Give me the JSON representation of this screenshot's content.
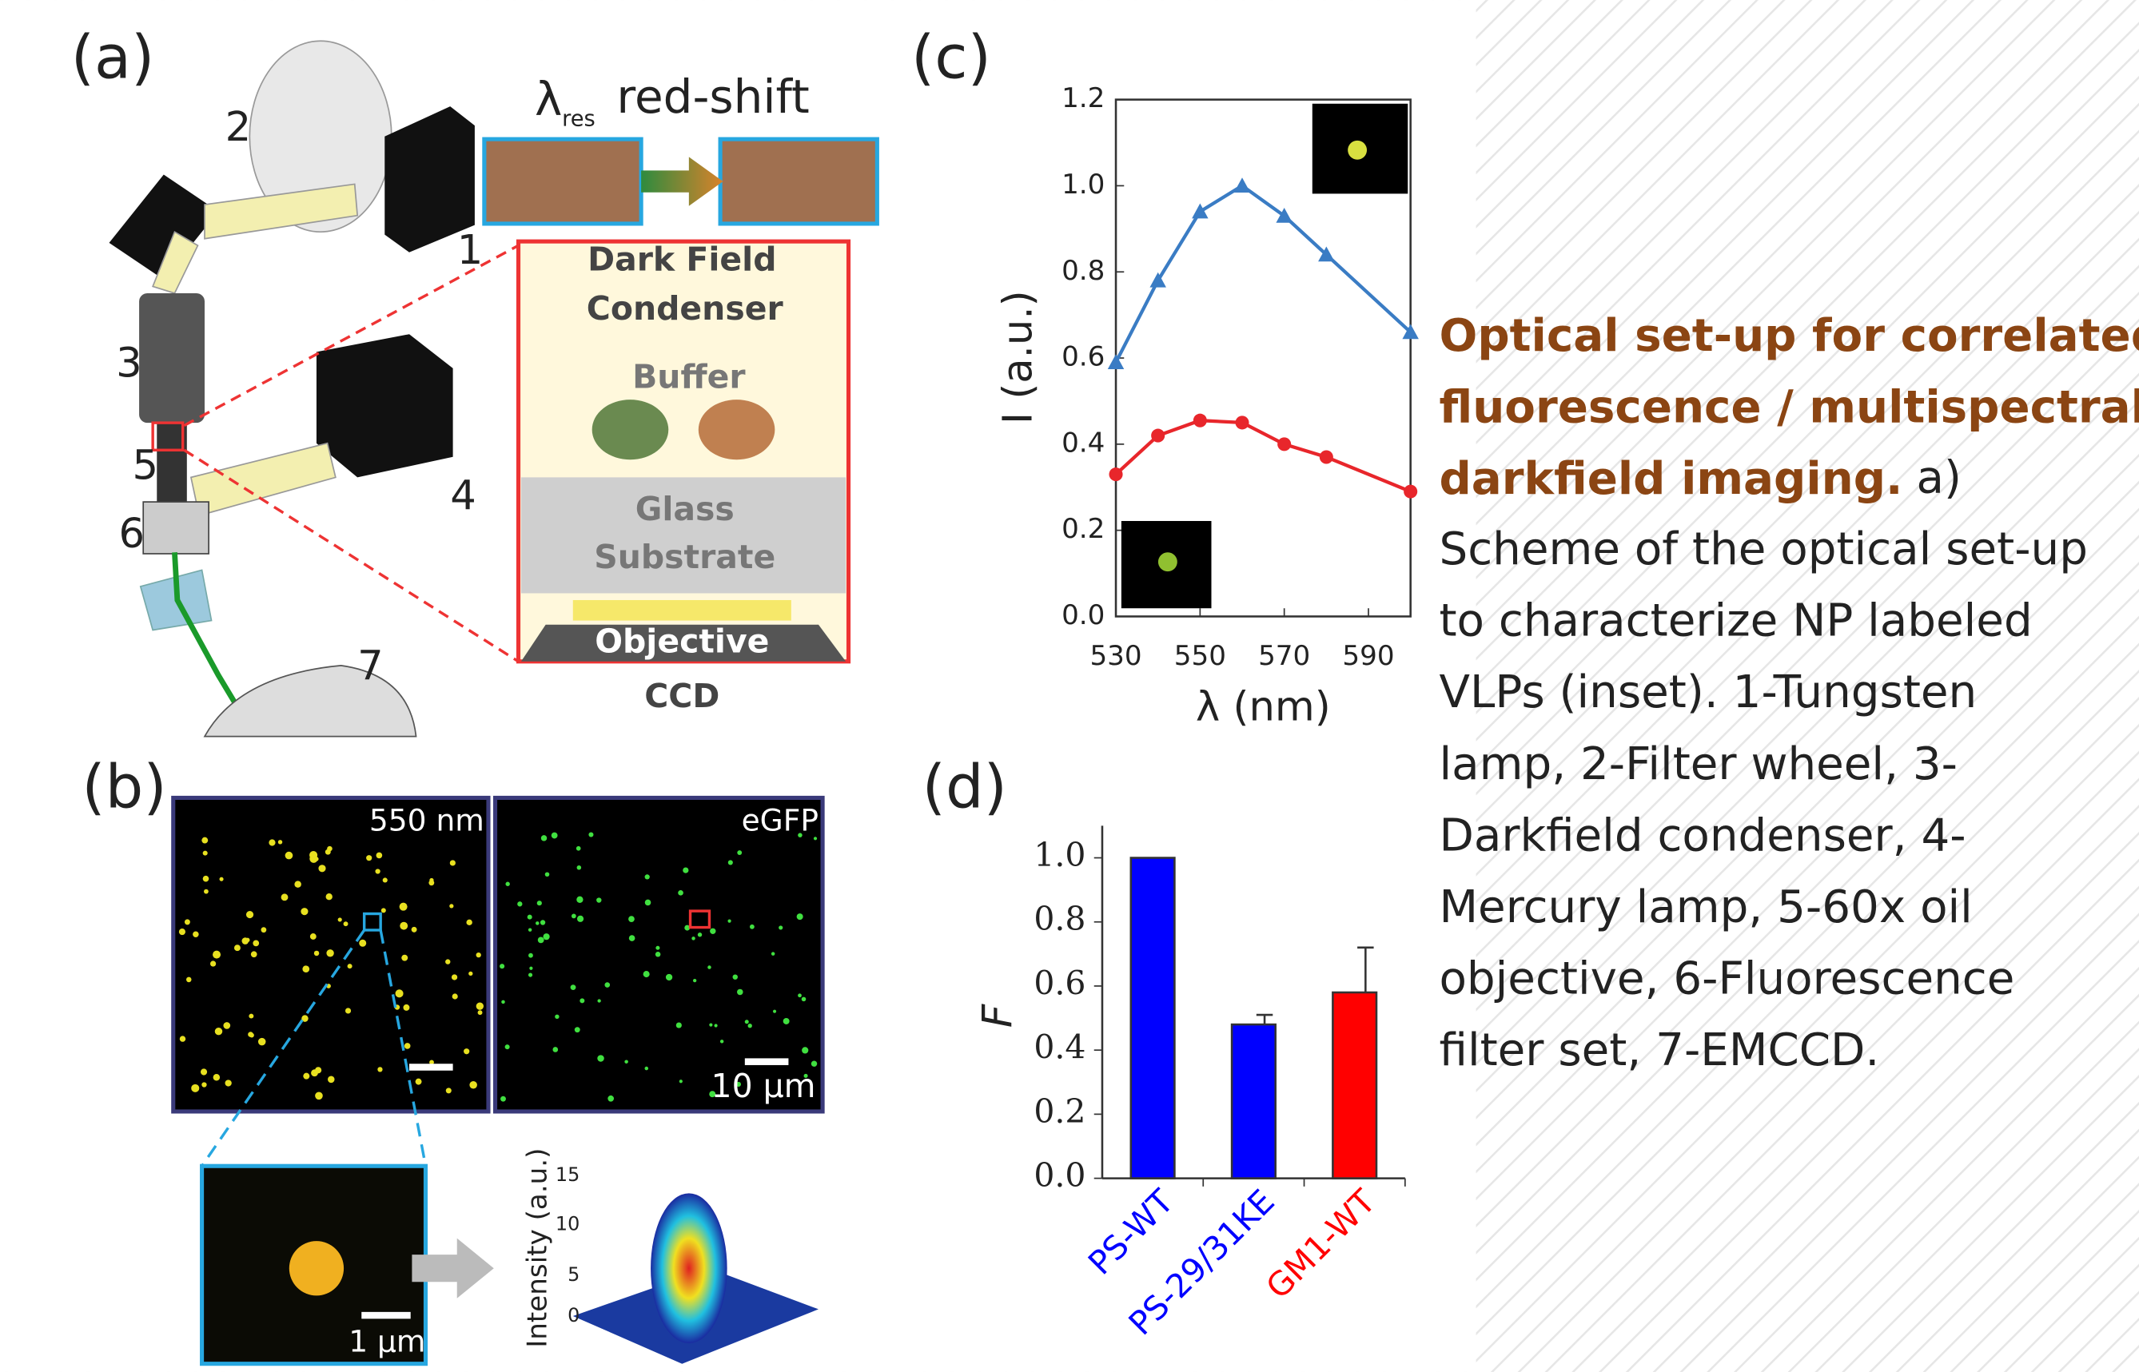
{
  "panels": {
    "a": "(a)",
    "b": "(b)",
    "c": "(c)",
    "d": "(d)"
  },
  "setup": {
    "numbers": [
      "1",
      "2",
      "3",
      "4",
      "5",
      "6",
      "7"
    ],
    "shift_symbol": "λ",
    "shift_subscript": "res",
    "shift_text": "red-shift",
    "condenser": [
      "Dark Field",
      "Condenser"
    ],
    "buffer": "Buffer",
    "substrate": [
      "Glass",
      "Substrate"
    ],
    "objective": "Objective",
    "ccd": "CCD"
  },
  "images": {
    "left_label": "550 nm",
    "right_label": "eGFP",
    "scale_big": "10 µm",
    "scale_small": "1 µm",
    "intensity_label": "Intensity (a.u.)",
    "intensity_ticks": [
      "15",
      "10",
      "5",
      "0"
    ]
  },
  "caption": {
    "title_lines": [
      "Optical set-up for correlated",
      "fluorescence / multispectral",
      "darkfield imaging."
    ],
    "body_lines": [
      "a)",
      "Scheme of the optical set-up",
      "to characterize NP labeled",
      "VLPs (inset). 1-Tungsten",
      "lamp, 2-Filter wheel, 3-",
      "Darkfield condenser, 4-",
      "Mercury lamp, 5-60x oil",
      "objective, 6-Fluorescence",
      "filter set, 7-EMCCD."
    ]
  },
  "chart_data": [
    {
      "type": "line",
      "x_label": "λ (nm)",
      "y_label": "I (a.u.)",
      "xlim": [
        530,
        600
      ],
      "xticks": [
        530,
        550,
        570,
        590
      ],
      "ylim": [
        0,
        1.2
      ],
      "yticks": [
        {
          "value": 0,
          "label": "0.0"
        },
        0.2,
        0.4,
        0.6,
        0.8,
        {
          "value": 1,
          "label": "1.0"
        },
        1.2
      ],
      "series": [
        {
          "color": "#3a7cc4",
          "marker": "triangle",
          "x": [
            530,
            540,
            550,
            560,
            570,
            580,
            600
          ],
          "values": [
            0.59,
            0.78,
            0.94,
            1.0,
            0.93,
            0.84,
            0.66
          ]
        },
        {
          "color": "#e8262b",
          "marker": "circle",
          "x": [
            530,
            540,
            550,
            560,
            570,
            580,
            600
          ],
          "values": [
            0.33,
            0.42,
            0.455,
            0.45,
            0.4,
            0.37,
            0.29
          ]
        }
      ]
    },
    {
      "type": "bar",
      "y_label": "F",
      "categories": [
        "PS-WT",
        "PS-29/31KE",
        "GM1-WT"
      ],
      "values": [
        1.0,
        0.48,
        0.58
      ],
      "errors": [
        0,
        0.03,
        0.14
      ],
      "colors": [
        "#0000ff",
        "#0000ff",
        "#ff0000"
      ],
      "ylim": [
        0,
        1.1
      ],
      "yticks": [
        {
          "value": 0,
          "label": "0.0"
        },
        0.2,
        0.4,
        0.6,
        0.8,
        {
          "value": 1,
          "label": "1.0"
        }
      ]
    }
  ]
}
